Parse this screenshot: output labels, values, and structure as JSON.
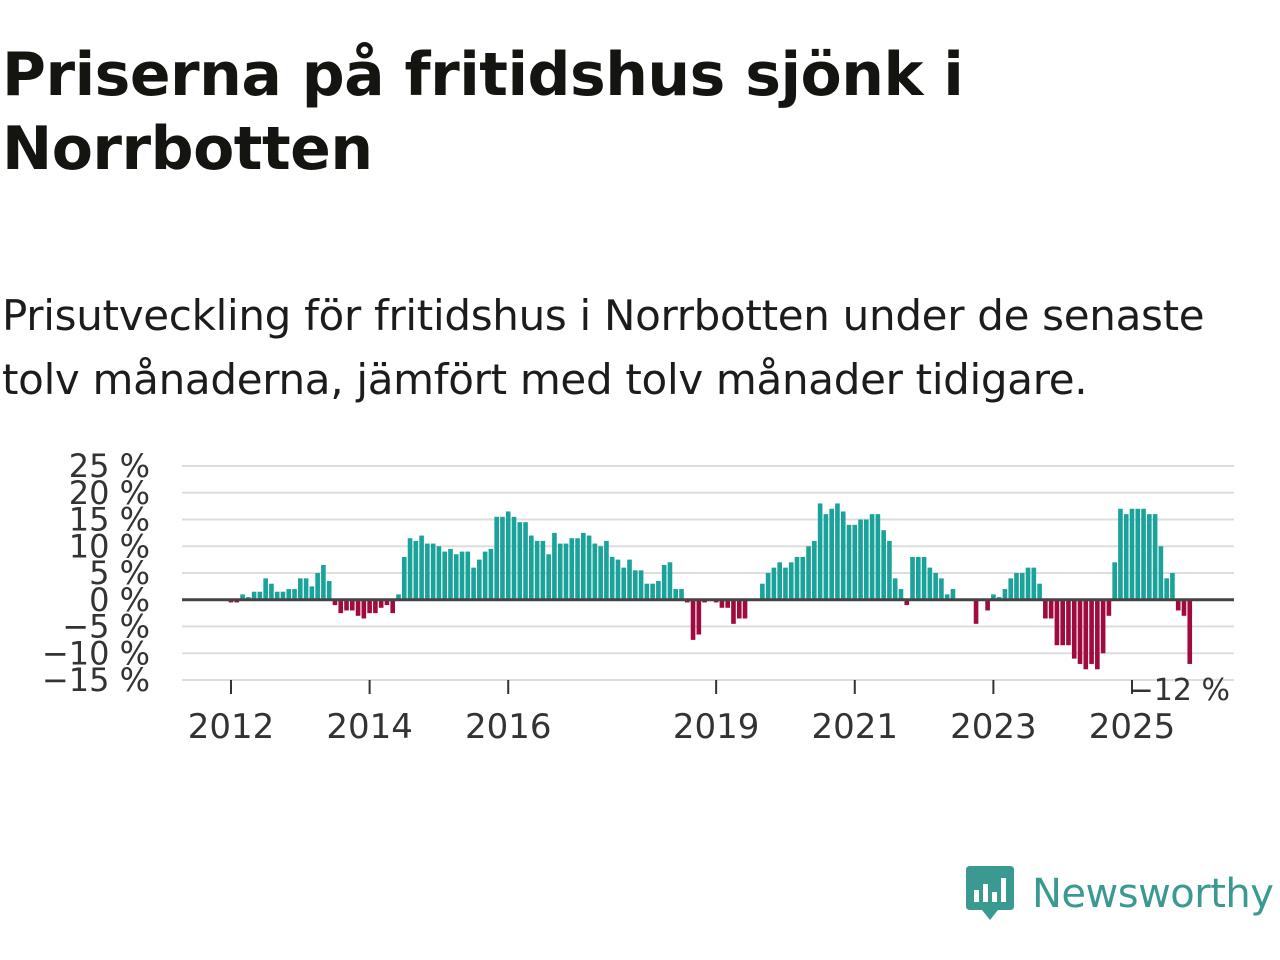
{
  "title": "Priserna på fritidshus sjönk i Norrbotten",
  "subtitle": "Prisutveckling för fritidshus i Norrbotten under de senaste tolv månaderna, jämfört med tolv månader tidigare.",
  "brand": {
    "name": "Newsworthy",
    "color": "#3a9a91"
  },
  "colors": {
    "positive": "#1aa39a",
    "negative": "#a00a3e",
    "zero_line": "#444444",
    "grid": "#dddddd"
  },
  "chart_data": {
    "type": "bar",
    "title": "Priserna på fritidshus sjönk i Norrbotten",
    "ylabel": "",
    "xlabel": "",
    "ylim": [
      -15,
      25
    ],
    "y_ticks": [
      25,
      20,
      15,
      10,
      5,
      0,
      -5,
      -10,
      -15
    ],
    "y_tick_labels": [
      "25 %",
      "20 %",
      "15 %",
      "10 %",
      "5 %",
      "0 %",
      "−5 %",
      "−10 %",
      "−15 %"
    ],
    "x_ticks": [
      2012,
      2014,
      2016,
      2019,
      2021,
      2023,
      2025
    ],
    "x_tick_labels": [
      "2012",
      "2014",
      "2016",
      "2019",
      "2021",
      "2023",
      "2025"
    ],
    "start": "2011-03",
    "frequency": "monthly",
    "last_value_label": "−12 %",
    "values": [
      0,
      0,
      0,
      0,
      0,
      0,
      0,
      0,
      0,
      0,
      -0.5,
      -0.5,
      1,
      0.5,
      1.5,
      1.5,
      4,
      3,
      1.5,
      1.5,
      2,
      2,
      4,
      4,
      2.5,
      5,
      6.5,
      3.5,
      -1,
      -2.5,
      -2,
      -2,
      -3,
      -3.5,
      -2.5,
      -2.5,
      -1.5,
      -1,
      -2.5,
      1,
      8,
      11.5,
      11,
      12,
      10.5,
      10.5,
      10,
      9,
      9.5,
      8.5,
      9,
      9,
      6,
      7.5,
      9,
      9.5,
      15.5,
      15.5,
      16.5,
      15.5,
      14.5,
      14.5,
      12,
      11,
      11,
      8.5,
      12.5,
      10.5,
      10.5,
      11.5,
      11.5,
      12.5,
      12,
      10.5,
      10,
      11,
      8,
      7.5,
      6,
      7.5,
      5.5,
      5.5,
      3,
      3,
      3.5,
      6.5,
      7,
      2,
      2,
      -0.5,
      -7.5,
      -6.5,
      -0.5,
      0,
      -0.5,
      -1.5,
      -1.5,
      -4.5,
      -3.5,
      -3.5,
      0,
      0,
      3,
      5,
      6,
      7,
      6,
      7,
      8,
      8,
      10,
      11,
      18,
      16,
      17,
      18,
      16.5,
      14,
      14,
      15,
      15,
      16,
      16,
      13,
      11,
      4,
      2,
      -1,
      8,
      8,
      8,
      6,
      5,
      4,
      1,
      2,
      0,
      0,
      0,
      -4.5,
      0,
      -2,
      1,
      0.5,
      2,
      4,
      5,
      5,
      6,
      6,
      3,
      -3.5,
      -3.5,
      -8.5,
      -8.5,
      -8.5,
      -11,
      -12,
      -13,
      -12,
      -13,
      -10,
      -3,
      7,
      17,
      16,
      17,
      17,
      17,
      16,
      16,
      10,
      4,
      5,
      -2,
      -3,
      -12
    ]
  }
}
